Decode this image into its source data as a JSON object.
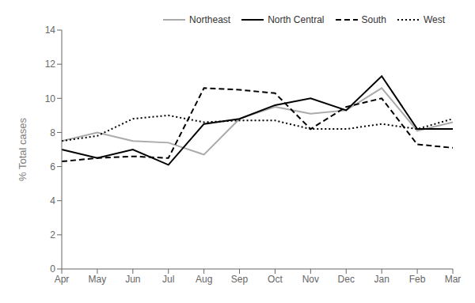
{
  "chart_data": {
    "type": "line",
    "categories": [
      "Apr",
      "May",
      "Jun",
      "Jul",
      "Aug",
      "Sep",
      "Oct",
      "Nov",
      "Dec",
      "Jan",
      "Feb",
      "Mar"
    ],
    "series": [
      {
        "name": "Northeast",
        "color": "#aaaaaa",
        "line_style": "solid",
        "values": [
          7.5,
          8.0,
          7.5,
          7.4,
          6.7,
          8.8,
          9.5,
          9.1,
          9.3,
          10.6,
          8.1,
          8.6
        ]
      },
      {
        "name": "North Central",
        "color": "#000000",
        "line_style": "solid",
        "values": [
          7.0,
          6.5,
          7.0,
          6.1,
          8.5,
          8.8,
          9.6,
          10.0,
          9.3,
          11.3,
          8.2,
          8.2
        ]
      },
      {
        "name": "South",
        "color": "#000000",
        "line_style": "dashed",
        "values": [
          6.3,
          6.5,
          6.6,
          6.5,
          10.6,
          10.5,
          10.3,
          8.2,
          9.5,
          10.0,
          7.3,
          7.1
        ]
      },
      {
        "name": "West",
        "color": "#000000",
        "line_style": "dotted",
        "values": [
          7.5,
          7.8,
          8.8,
          9.0,
          8.6,
          8.7,
          8.7,
          8.2,
          8.2,
          8.5,
          8.2,
          8.8
        ]
      }
    ],
    "ylabel": "% Total cases",
    "ylim": [
      0,
      14
    ],
    "yticks": [
      0,
      2,
      4,
      6,
      8,
      10,
      12,
      14
    ],
    "grid": false,
    "legend": "upper right"
  }
}
